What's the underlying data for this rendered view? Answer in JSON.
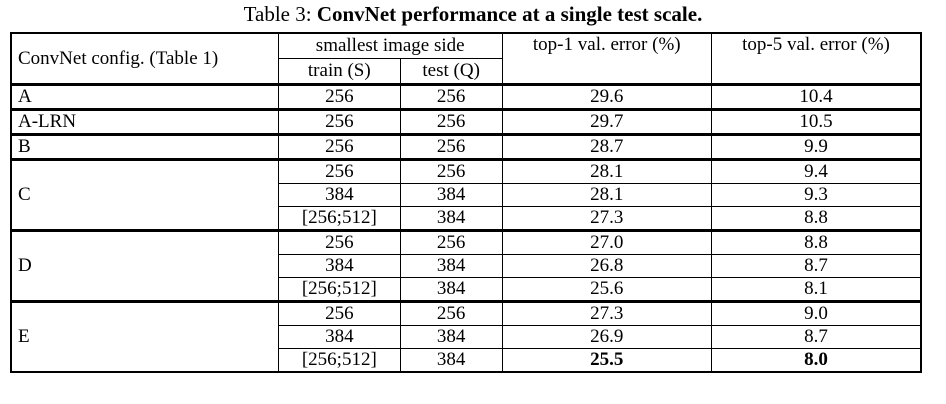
{
  "caption": {
    "label": "Table 3:",
    "title": "ConvNet performance at a single test scale."
  },
  "table": {
    "header": {
      "config": "ConvNet config. (Table 1)",
      "side": "smallest image side",
      "train": "train (S)",
      "test": "test (Q)",
      "top1": "top-1 val. error (%)",
      "top5": "top-5 val. error (%)"
    },
    "groups": [
      {
        "config": "A",
        "rows": [
          [
            "256",
            "256",
            "29.6",
            "10.4"
          ]
        ]
      },
      {
        "config": "A-LRN",
        "rows": [
          [
            "256",
            "256",
            "29.7",
            "10.5"
          ]
        ]
      },
      {
        "config": "B",
        "rows": [
          [
            "256",
            "256",
            "28.7",
            "9.9"
          ]
        ]
      },
      {
        "config": "C",
        "rows": [
          [
            "256",
            "256",
            "28.1",
            "9.4"
          ],
          [
            "384",
            "384",
            "28.1",
            "9.3"
          ],
          [
            "[256;512]",
            "384",
            "27.3",
            "8.8"
          ]
        ]
      },
      {
        "config": "D",
        "rows": [
          [
            "256",
            "256",
            "27.0",
            "8.8"
          ],
          [
            "384",
            "384",
            "26.8",
            "8.7"
          ],
          [
            "[256;512]",
            "384",
            "25.6",
            "8.1"
          ]
        ]
      },
      {
        "config": "E",
        "rows": [
          [
            "256",
            "256",
            "27.3",
            "9.0"
          ],
          [
            "384",
            "384",
            "26.9",
            "8.7"
          ],
          [
            "[256;512]",
            "384",
            "25.5",
            "8.0"
          ]
        ]
      }
    ]
  }
}
